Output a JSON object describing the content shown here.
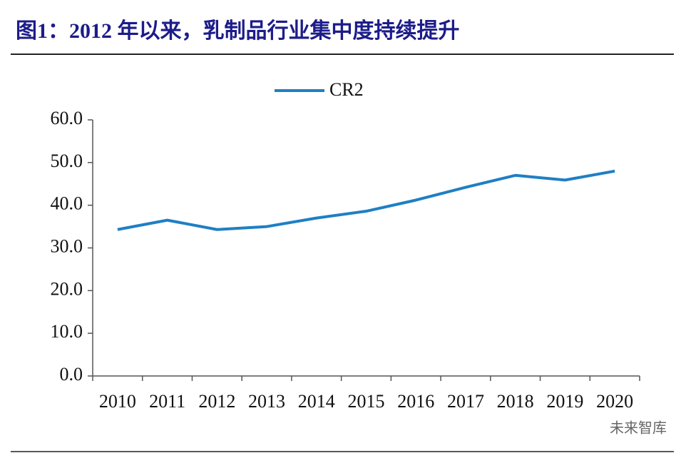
{
  "chart_data": {
    "type": "line",
    "title": "图1：2012 年以来，乳制品行业集中度持续提升",
    "categories": [
      "2010",
      "2011",
      "2012",
      "2013",
      "2014",
      "2015",
      "2016",
      "2017",
      "2018",
      "2019",
      "2020"
    ],
    "series": [
      {
        "name": "CR2",
        "color": "#1f7fc4",
        "values": [
          34.3,
          36.5,
          34.3,
          35.0,
          37.0,
          38.6,
          41.2,
          44.2,
          47.0,
          45.9,
          48.0
        ]
      }
    ],
    "ylim": [
      0,
      60
    ],
    "yticks": [
      {
        "value": 0,
        "label": "0.0"
      },
      {
        "value": 10,
        "label": "10.0"
      },
      {
        "value": 20,
        "label": "20.0"
      },
      {
        "value": 30,
        "label": "30.0"
      },
      {
        "value": 40,
        "label": "40.0"
      },
      {
        "value": 50,
        "label": "50.0"
      },
      {
        "value": 60,
        "label": "60.0"
      }
    ],
    "grid": false,
    "legend": "top",
    "watermark": "未来智库"
  }
}
